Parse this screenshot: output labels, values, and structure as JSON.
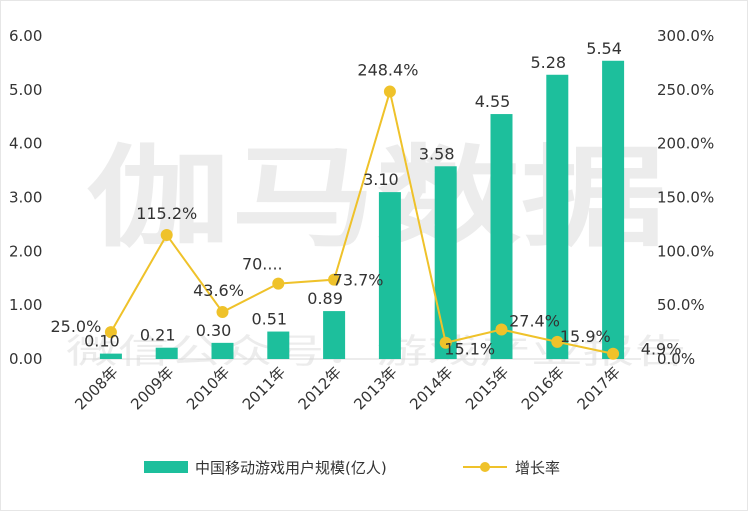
{
  "watermark": {
    "main": "伽马数据",
    "sub": "微信公众号：游戏产业报告"
  },
  "chart_data": {
    "type": "bar+line",
    "categories": [
      "2008年",
      "2009年",
      "2010年",
      "2011年",
      "2012年",
      "2013年",
      "2014年",
      "2015年",
      "2016年",
      "2017年"
    ],
    "series": [
      {
        "name": "中国移动游戏用户规模(亿人)",
        "type": "bar",
        "axis": "left",
        "color": "#1DBF9C",
        "values": [
          0.1,
          0.21,
          0.3,
          0.51,
          0.89,
          3.1,
          3.58,
          4.55,
          5.28,
          5.54
        ],
        "labels": [
          "0.10",
          "0.21",
          "0.30",
          "0.51",
          "0.89",
          "3.10",
          "3.58",
          "4.55",
          "5.28",
          "5.54"
        ]
      },
      {
        "name": "增长率",
        "type": "line",
        "axis": "right",
        "color": "#EFC22A",
        "values": [
          25.0,
          115.2,
          43.6,
          70.0,
          73.7,
          248.4,
          15.1,
          27.4,
          15.9,
          4.9
        ],
        "labels": [
          "25.0%",
          "115.2%",
          "43.6%",
          "70....",
          "73.7%",
          "248.4%",
          "15.1%",
          "27.4%",
          "15.9%",
          "4.9%"
        ]
      }
    ],
    "left_axis": {
      "min": 0,
      "max": 6,
      "step": 1,
      "ticks": [
        "0.00",
        "1.00",
        "2.00",
        "3.00",
        "4.00",
        "5.00",
        "6.00"
      ]
    },
    "right_axis": {
      "min": 0,
      "max": 300,
      "step": 50,
      "ticks": [
        "0.0%",
        "50.0%",
        "100.0%",
        "150.0%",
        "200.0%",
        "250.0%",
        "300.0%"
      ]
    },
    "grid": false,
    "legend_position": "bottom"
  }
}
